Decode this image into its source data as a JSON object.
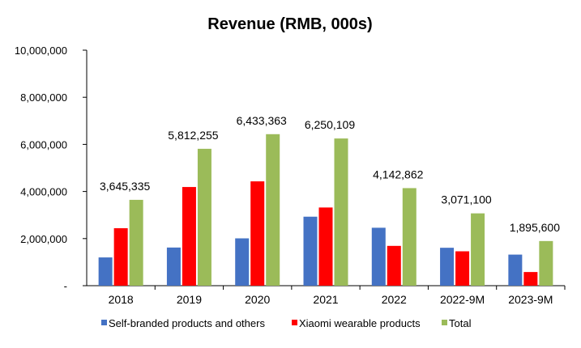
{
  "chart_data": {
    "type": "bar",
    "title": "Revenue (RMB, 000s)",
    "xlabel": "",
    "ylabel": "",
    "ylim": [
      0,
      10000000
    ],
    "y_ticks": [
      0,
      2000000,
      4000000,
      6000000,
      8000000,
      10000000
    ],
    "y_tick_labels": [
      "-",
      "2,000,000",
      "4,000,000",
      "6,000,000",
      "8,000,000",
      "10,000,000"
    ],
    "grid": false,
    "legend_position": "bottom",
    "categories": [
      "2018",
      "2019",
      "2020",
      "2021",
      "2022",
      "2022-9M",
      "2023-9M"
    ],
    "series": [
      {
        "name": "Self-branded products and others",
        "color": "#4472C4",
        "values": [
          1200000,
          1620000,
          2010000,
          2930000,
          2460000,
          1610000,
          1320000
        ]
      },
      {
        "name": "Xiaomi wearable products",
        "color": "#FF0000",
        "values": [
          2440000,
          4190000,
          4430000,
          3320000,
          1690000,
          1460000,
          580000
        ]
      },
      {
        "name": "Total",
        "color": "#9BBB59",
        "values": [
          3645335,
          5812255,
          6433363,
          6250109,
          4142862,
          3071100,
          1895600
        ]
      }
    ],
    "total_labels": [
      "3,645,335",
      "5,812,255",
      "6,433,363",
      "6,250,109",
      "4,142,862",
      "3,071,100",
      "1,895,600"
    ]
  }
}
